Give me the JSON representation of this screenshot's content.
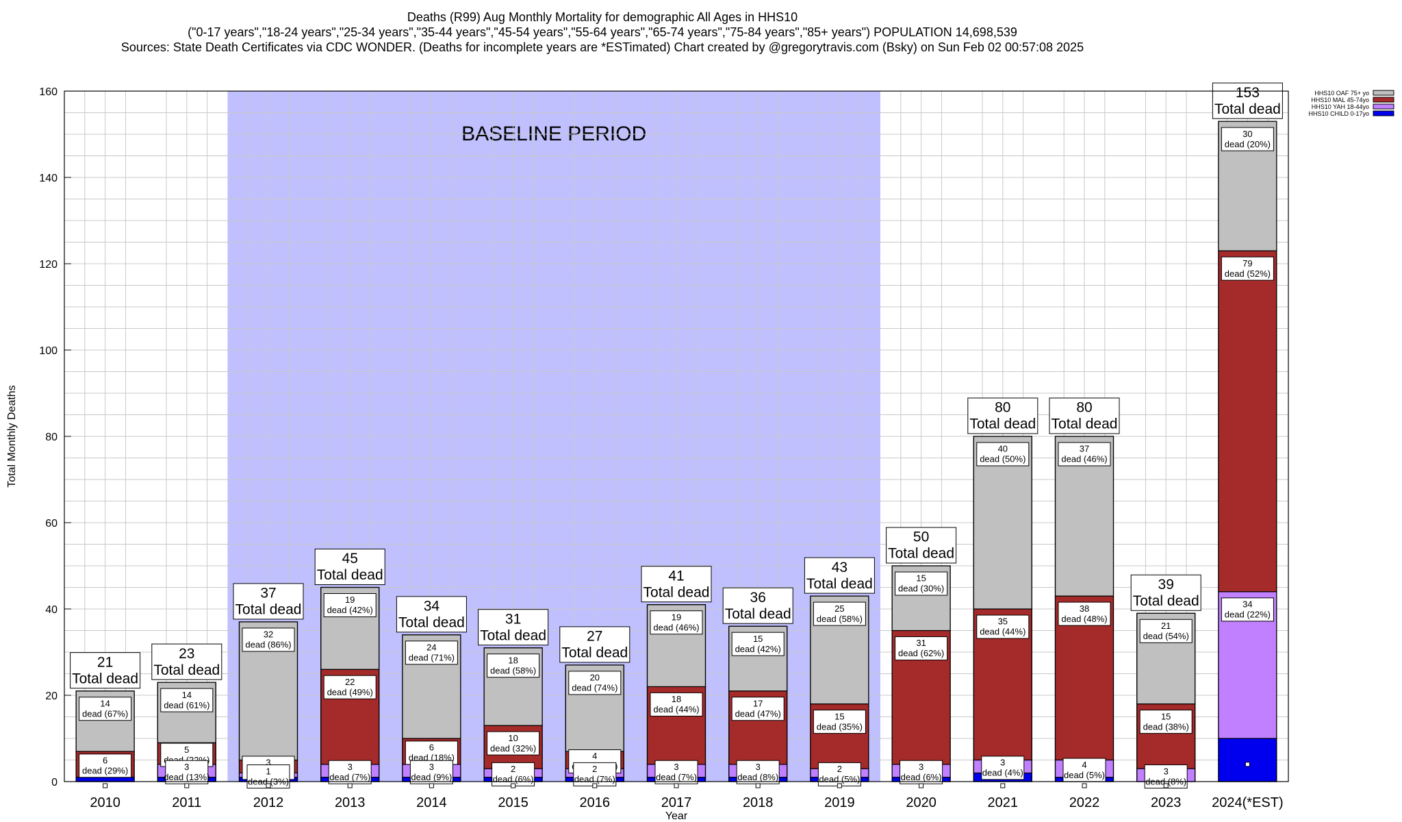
{
  "titles": {
    "line1": "Deaths (R99) Aug Monthly Mortality for demographic All Ages in HHS10",
    "line2": "(\"0-17 years\",\"18-24 years\",\"25-34 years\",\"35-44 years\",\"45-54 years\",\"55-64 years\",\"65-74 years\",\"75-84 years\",\"85+ years\") POPULATION 14,698,539",
    "line3": "Sources: State Death Certificates via CDC WONDER. (Deaths for incomplete years are *ESTimated)                 Chart created by @gregorytravis.com (Bsky) on Sun Feb 02 00:57:08 2025"
  },
  "colors": {
    "child": "#0000ee",
    "yah": "#c080ff",
    "mal": "#a52a2a",
    "oaf": "#c0c0c0",
    "baseline": "#c0c0ff",
    "grid": "#c8c8c8"
  },
  "chart_data": {
    "type": "bar",
    "stacked": true,
    "xlabel": "Year",
    "ylabel": "Total Monthly Deaths",
    "ylim": [
      0,
      160
    ],
    "yticks": [
      0,
      20,
      40,
      60,
      80,
      100,
      120,
      140,
      160
    ],
    "grid": true,
    "legend_position": "top-right",
    "baseline_label": "BASELINE PERIOD",
    "baseline_range": [
      "2012",
      "2019"
    ],
    "categories": [
      "2010",
      "2011",
      "2012",
      "2013",
      "2014",
      "2015",
      "2016",
      "2017",
      "2018",
      "2019",
      "2020",
      "2021",
      "2022",
      "2023",
      "2024(*EST)"
    ],
    "series": [
      {
        "name": "HHS10 CHILD 0-17yo",
        "key": "child",
        "values": [
          1,
          1,
          1,
          1,
          1,
          1,
          1,
          1,
          1,
          1,
          1,
          2,
          1,
          0,
          10
        ]
      },
      {
        "name": "HHS10 YAH 18-44yo",
        "key": "yah",
        "values": [
          0,
          3,
          1,
          3,
          3,
          2,
          2,
          3,
          3,
          2,
          3,
          3,
          4,
          3,
          34
        ]
      },
      {
        "name": "HHS10 MAL 45-74yo",
        "key": "mal",
        "values": [
          6,
          5,
          3,
          22,
          6,
          10,
          4,
          18,
          17,
          15,
          31,
          35,
          38,
          15,
          79
        ]
      },
      {
        "name": "HHS10 OAF 75+ yo",
        "key": "oaf",
        "values": [
          14,
          14,
          32,
          19,
          24,
          18,
          20,
          19,
          15,
          25,
          15,
          40,
          37,
          21,
          30
        ]
      }
    ],
    "totals": [
      21,
      23,
      37,
      45,
      34,
      31,
      27,
      41,
      36,
      43,
      50,
      80,
      80,
      39,
      153
    ],
    "total_suffix": "Total dead",
    "segment_labels": [
      {
        "yah": [
          "",
          ""
        ],
        "mal": [
          "6",
          "dead (29%)"
        ],
        "oaf": [
          "14",
          "dead (67%)"
        ]
      },
      {
        "yah": [
          "3",
          "dead (13%)"
        ],
        "mal": [
          "5",
          "dead (22%)"
        ],
        "oaf": [
          "14",
          "dead (61%)"
        ]
      },
      {
        "yah": [
          "1",
          "dead (3%)"
        ],
        "mal": [
          "3",
          "dead (8%)"
        ],
        "oaf": [
          "32",
          "dead (86%)"
        ]
      },
      {
        "yah": [
          "3",
          "dead (7%)"
        ],
        "mal": [
          "22",
          "dead (49%)"
        ],
        "oaf": [
          "19",
          "dead (42%)"
        ]
      },
      {
        "yah": [
          "3",
          "dead (9%)"
        ],
        "mal": [
          "6",
          "dead (18%)"
        ],
        "oaf": [
          "24",
          "dead (71%)"
        ]
      },
      {
        "yah": [
          "2",
          "dead (6%)"
        ],
        "mal": [
          "10",
          "dead (32%)"
        ],
        "oaf": [
          "18",
          "dead (58%)"
        ]
      },
      {
        "yah": [
          "2",
          "dead (7%)"
        ],
        "mal": [
          "4",
          "dead (15%)"
        ],
        "oaf": [
          "20",
          "dead (74%)"
        ]
      },
      {
        "yah": [
          "3",
          "dead (7%)"
        ],
        "mal": [
          "18",
          "dead (44%)"
        ],
        "oaf": [
          "19",
          "dead (46%)"
        ]
      },
      {
        "yah": [
          "3",
          "dead (8%)"
        ],
        "mal": [
          "17",
          "dead (47%)"
        ],
        "oaf": [
          "15",
          "dead (42%)"
        ]
      },
      {
        "yah": [
          "2",
          "dead (5%)"
        ],
        "mal": [
          "15",
          "dead (35%)"
        ],
        "oaf": [
          "25",
          "dead (58%)"
        ]
      },
      {
        "yah": [
          "3",
          "dead (6%)"
        ],
        "mal": [
          "31",
          "dead (62%)"
        ],
        "oaf": [
          "15",
          "dead (30%)"
        ]
      },
      {
        "yah": [
          "3",
          "dead (4%)"
        ],
        "mal": [
          "35",
          "dead (44%)"
        ],
        "oaf": [
          "40",
          "dead (50%)"
        ]
      },
      {
        "yah": [
          "4",
          "dead (5%)"
        ],
        "mal": [
          "38",
          "dead (48%)"
        ],
        "oaf": [
          "37",
          "dead (46%)"
        ]
      },
      {
        "yah": [
          "3",
          "dead (8%)"
        ],
        "mal": [
          "15",
          "dead (38%)"
        ],
        "oaf": [
          "21",
          "dead (54%)"
        ]
      },
      {
        "yah": [
          "34",
          "dead (22%)"
        ],
        "mal": [
          "79",
          "dead (52%)"
        ],
        "oaf": [
          "30",
          "dead (20%)"
        ]
      }
    ]
  }
}
